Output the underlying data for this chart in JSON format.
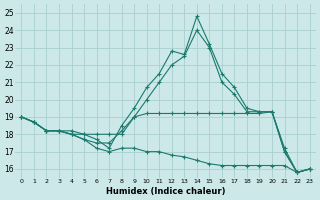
{
  "xlabel": "Humidex (Indice chaleur)",
  "bg_color": "#cce8e8",
  "line_color": "#1a7a6e",
  "grid_color": "#aacfcf",
  "xlim": [
    -0.5,
    23.5
  ],
  "ylim": [
    15.5,
    25.5
  ],
  "yticks": [
    16,
    17,
    18,
    19,
    20,
    21,
    22,
    23,
    24,
    25
  ],
  "xticks": [
    0,
    1,
    2,
    3,
    4,
    5,
    6,
    7,
    8,
    9,
    10,
    11,
    12,
    13,
    14,
    15,
    16,
    17,
    18,
    19,
    20,
    21,
    22,
    23
  ],
  "lines": [
    {
      "x": [
        0,
        1,
        2,
        3,
        4,
        5,
        6,
        7,
        8,
        9,
        10,
        11,
        12,
        13,
        14,
        15,
        16,
        17,
        18,
        19,
        20,
        21,
        22,
        23
      ],
      "y": [
        19.0,
        18.7,
        18.2,
        18.2,
        18.2,
        18.0,
        17.7,
        17.2,
        18.5,
        19.5,
        20.7,
        21.5,
        22.8,
        22.6,
        24.8,
        23.2,
        21.5,
        20.7,
        19.5,
        19.3,
        19.3,
        17.0,
        15.8,
        16.0
      ]
    },
    {
      "x": [
        0,
        1,
        2,
        3,
        4,
        5,
        6,
        7,
        8,
        9,
        10,
        11,
        12,
        13,
        14,
        15,
        16,
        17,
        18,
        19,
        20,
        21,
        22,
        23
      ],
      "y": [
        19.0,
        18.7,
        18.2,
        18.2,
        18.0,
        17.7,
        17.5,
        17.5,
        18.2,
        19.0,
        20.0,
        21.0,
        22.0,
        22.5,
        24.0,
        23.0,
        21.0,
        20.3,
        19.3,
        19.3,
        19.3,
        17.0,
        15.8,
        16.0
      ]
    },
    {
      "x": [
        0,
        1,
        2,
        3,
        4,
        5,
        6,
        7,
        8,
        9,
        10,
        11,
        12,
        13,
        14,
        15,
        16,
        17,
        18,
        19,
        20,
        21,
        22,
        23
      ],
      "y": [
        19.0,
        18.7,
        18.2,
        18.2,
        18.0,
        18.0,
        18.0,
        18.0,
        18.0,
        19.0,
        19.2,
        19.2,
        19.2,
        19.2,
        19.2,
        19.2,
        19.2,
        19.2,
        19.2,
        19.2,
        19.3,
        17.2,
        15.8,
        16.0
      ]
    },
    {
      "x": [
        0,
        1,
        2,
        3,
        4,
        5,
        6,
        7,
        8,
        9,
        10,
        11,
        12,
        13,
        14,
        15,
        16,
        17,
        18,
        19,
        20,
        21,
        22,
        23
      ],
      "y": [
        19.0,
        18.7,
        18.2,
        18.2,
        18.0,
        17.7,
        17.2,
        17.0,
        17.2,
        17.2,
        17.0,
        17.0,
        16.8,
        16.7,
        16.5,
        16.3,
        16.2,
        16.2,
        16.2,
        16.2,
        16.2,
        16.2,
        15.8,
        16.0
      ]
    }
  ]
}
